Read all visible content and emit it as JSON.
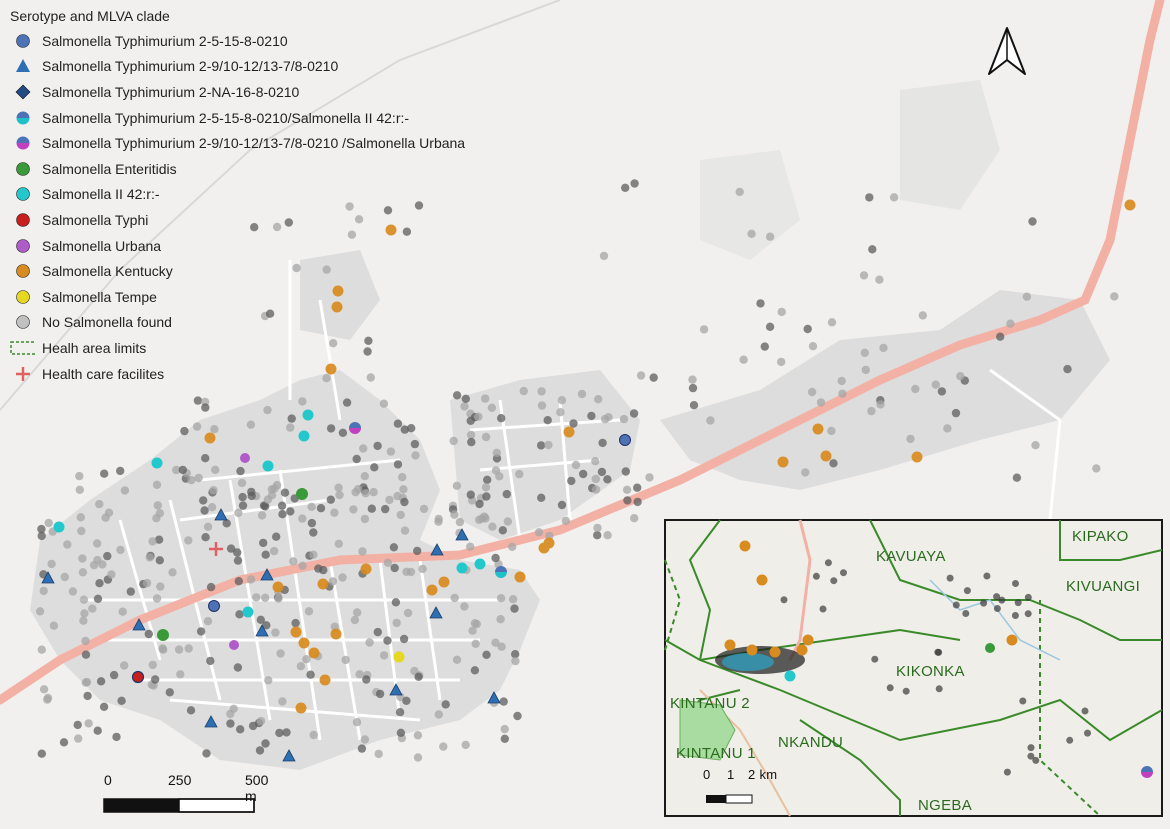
{
  "legend": {
    "title": "Serotype and MLVA clade",
    "items": [
      {
        "label": "Salmonella Typhimurium 2-5-15-8-0210",
        "shape": "circle",
        "color": "#4d72b5",
        "color2": ""
      },
      {
        "label": "Salmonella Typhimurium 2-9/10-12/13-7/8-0210",
        "shape": "triangle",
        "color": "#2e6fb4",
        "color2": ""
      },
      {
        "label": "Salmonella Typhimurium 2-NA-16-8-0210",
        "shape": "diamond",
        "color": "#224c86",
        "color2": ""
      },
      {
        "label": "Salmonella Typhimurium 2-5-15-8-0210/Salmonella II 42:r:-",
        "shape": "half",
        "color": "#4d72b5",
        "color2": "#20c0c8"
      },
      {
        "label": "Salmonella Typhimurium 2-9/10-12/13-7/8-0210 /Salmonella Urbana",
        "shape": "half",
        "color": "#4d72b5",
        "color2": "#c040c0"
      },
      {
        "label": "Salmonella Enteritidis",
        "shape": "circle",
        "color": "#3a9a3a",
        "color2": ""
      },
      {
        "label": "Salmonella II 42:r:-",
        "shape": "circle",
        "color": "#22c8cc",
        "color2": ""
      },
      {
        "label": "Salmonella Typhi",
        "shape": "circle",
        "color": "#c81e1e",
        "color2": ""
      },
      {
        "label": "Salmonella Urbana",
        "shape": "circle",
        "color": "#b05cc8",
        "color2": ""
      },
      {
        "label": "Salmonella Kentucky",
        "shape": "circle",
        "color": "#d88b1e",
        "color2": ""
      },
      {
        "label": "Salmonella Tempe",
        "shape": "circle",
        "color": "#e6d820",
        "color2": ""
      },
      {
        "label": "No Salmonella found",
        "shape": "circle",
        "color": "#c0c0c0",
        "color2": ""
      },
      {
        "label": "Healh area limits",
        "shape": "dashed-box",
        "color": "#3a8a2a",
        "color2": ""
      },
      {
        "label": "Health care facilites",
        "shape": "cross",
        "color": "#e06060",
        "color2": ""
      }
    ]
  },
  "scale": {
    "labels": [
      "0",
      "250",
      "500 m"
    ]
  },
  "inset": {
    "labels": [
      "KAVUAYA",
      "KIPAKO",
      "KIVUANGI",
      "KIKONKA",
      "KINTANU 2",
      "KINTANU 1",
      "NKANDU",
      "NGEBA"
    ],
    "scale_labels": [
      "0",
      "1",
      "2 km"
    ]
  },
  "colors": {
    "background": "#ffffff",
    "land": "#ecebe8",
    "village": "#dcdcdc",
    "road": "#f2b0a4",
    "kentucky": "#d88b1e",
    "ii42": "#22c8cc",
    "typhimurium": "#2e6fb4",
    "none": "#6a6a6a",
    "inset_border": "#1a1a1a",
    "inset_line": "#3a8a2a"
  }
}
